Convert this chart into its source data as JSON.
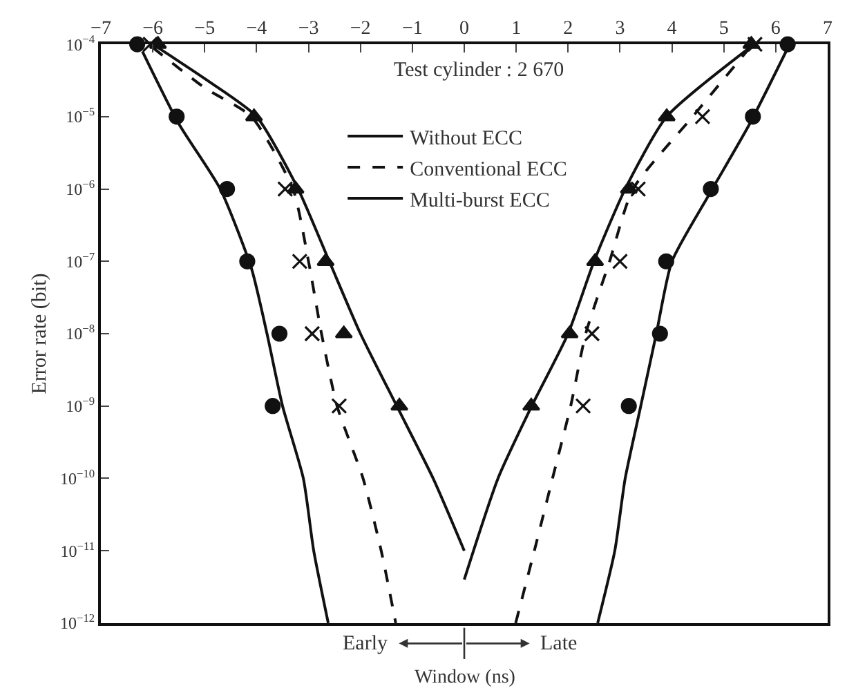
{
  "chart_data": {
    "type": "line",
    "xlabel": "Window (ns)",
    "ylabel": "Error rate (bit)",
    "annotations": [
      "Test cylinder : 2 670",
      "Early",
      "Late"
    ],
    "log": "y",
    "legend": "top",
    "grid": false,
    "xlim": [
      -7,
      7
    ],
    "xticks": [
      {
        "value": -7,
        "label": "−7"
      },
      {
        "value": -6,
        "label": "−6"
      },
      {
        "value": -5,
        "label": "−5"
      },
      {
        "value": -4,
        "label": "−4"
      },
      {
        "value": -3,
        "label": "−3"
      },
      {
        "value": -2,
        "label": "−2"
      },
      {
        "value": -1,
        "label": "−1"
      },
      0,
      1,
      2,
      3,
      4,
      5,
      6,
      7
    ],
    "ylim": [
      1e-12,
      0.0001
    ],
    "yticks": [
      {
        "value": 1e-12,
        "label": "10$^{−12}$"
      },
      {
        "value": 1e-11,
        "label": "10$^{−11}$"
      },
      {
        "value": 1e-10,
        "label": "10$^{−10}$"
      },
      {
        "value": 1e-09,
        "label": "10$^{−9}$"
      },
      {
        "value": 1e-08,
        "label": "10$^{−8}$"
      },
      {
        "value": 1e-07,
        "label": "10$^{−7}$"
      },
      {
        "value": 1e-06,
        "label": "10$^{−6}$"
      },
      {
        "value": 1e-05,
        "label": "10$^{−5}$"
      },
      {
        "value": 0.0001,
        "label": "10$^{−4}$"
      }
    ],
    "series": [
      {
        "name": "Without ECC",
        "color": "#111111",
        "line_style": "solid",
        "marker": "none",
        "x": [
          -6.2,
          -5.5,
          -4.7,
          -4.1,
          -3.8,
          -3.5,
          -3.1,
          -2.9,
          -2.62,
          null,
          2.57,
          2.9,
          3.1,
          3.4,
          3.7,
          4.0,
          4.7,
          5.5,
          6.2
        ],
        "values": [
          8e-05,
          8e-06,
          1e-06,
          8e-08,
          1e-08,
          1e-09,
          1e-10,
          1e-11,
          1e-12,
          null,
          1e-12,
          1e-11,
          1e-10,
          1e-09,
          1e-08,
          1e-07,
          8e-07,
          8e-06,
          8e-05
        ]
      },
      {
        "name": "Conventional ECC",
        "color": "#111111",
        "line_style": "dashed",
        "marker": "none",
        "x": [
          -6.0,
          -5.0,
          -4.1,
          -3.3,
          -3.0,
          -2.75,
          -2.45,
          -1.95,
          -1.6,
          -1.32,
          null,
          0.99,
          1.35,
          1.7,
          2.05,
          2.34,
          2.8,
          3.25,
          4.4,
          5.5
        ],
        "values": [
          9e-05,
          2.5e-05,
          1e-05,
          1e-06,
          1e-07,
          1e-08,
          1e-09,
          1e-10,
          1e-11,
          1e-12,
          null,
          1e-12,
          1e-11,
          1e-10,
          1e-09,
          1e-08,
          1e-07,
          1e-06,
          1e-05,
          9e-05
        ]
      },
      {
        "name": "Multi-burst ECC",
        "color": "#111111",
        "line_style": "solid",
        "marker": "none",
        "x": [
          -5.9,
          -4.9,
          -4.0,
          -3.2,
          -2.6,
          -2.0,
          -1.3,
          -0.6,
          0.0,
          null,
          0.0,
          0.65,
          1.3,
          2.0,
          2.5,
          3.1,
          3.9,
          5.5
        ],
        "values": [
          9e-05,
          3e-05,
          1e-05,
          1e-06,
          1e-07,
          1e-08,
          1e-09,
          1e-10,
          1e-11,
          null,
          4e-12,
          1e-10,
          1e-09,
          1e-08,
          1e-07,
          1e-06,
          1e-05,
          9e-05
        ]
      },
      {
        "type": "scatter",
        "color": "#111111",
        "marker": "circle",
        "x": [
          -6.3,
          -5.54,
          -4.57,
          -4.18,
          -3.56,
          -3.69,
          6.23,
          5.56,
          4.75,
          3.89,
          3.77,
          3.17
        ],
        "values": [
          0.0001,
          1e-05,
          1e-06,
          1e-07,
          1e-08,
          1e-09,
          0.0001,
          1e-05,
          1e-06,
          1e-07,
          1e-08,
          1e-09
        ]
      },
      {
        "type": "scatter",
        "color": "#111111",
        "marker": "cross",
        "x": [
          -6.05,
          -4.05,
          -3.45,
          -3.17,
          -2.93,
          -2.41,
          5.6,
          4.59,
          3.35,
          3.0,
          2.46,
          2.29
        ],
        "values": [
          0.0001,
          null,
          1e-06,
          1e-07,
          1e-08,
          1e-09,
          0.0001,
          1e-05,
          1e-06,
          1e-07,
          1e-08,
          1e-09
        ]
      },
      {
        "type": "scatter",
        "color": "#111111",
        "marker": "triangle",
        "x": [
          -5.9,
          -4.05,
          -3.25,
          -2.67,
          -2.32,
          -1.25,
          5.53,
          3.9,
          3.17,
          2.52,
          2.03,
          1.29
        ],
        "values": [
          0.0001,
          1e-05,
          1e-06,
          1e-07,
          1e-08,
          1e-09,
          0.0001,
          1e-05,
          1e-06,
          1e-07,
          1e-08,
          1e-09
        ]
      }
    ]
  }
}
